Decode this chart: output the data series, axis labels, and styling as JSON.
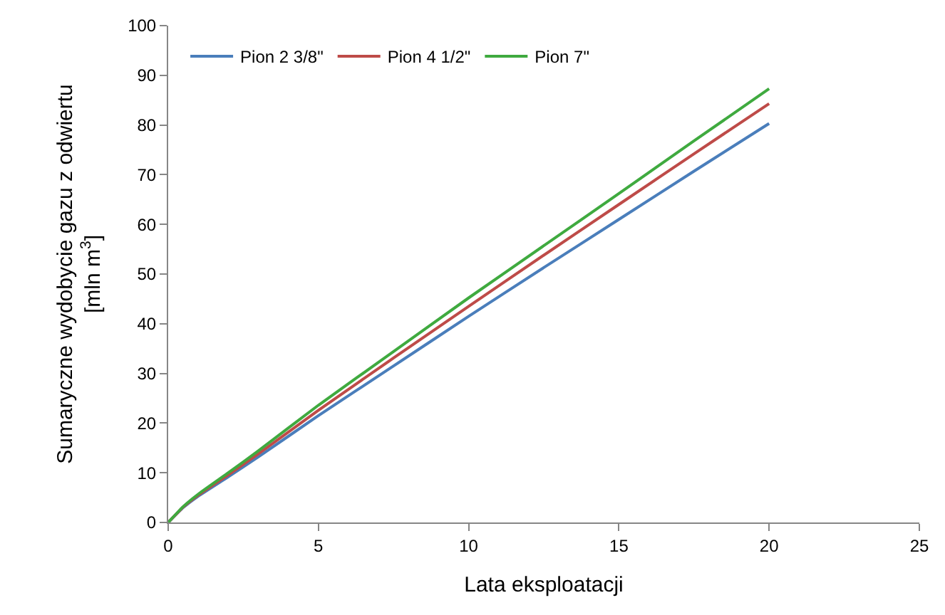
{
  "chart_data": {
    "type": "line",
    "xlabel": "Lata eksploatacji",
    "ylabel": "Sumaryczne wydobycie gazu z odwiertu\n[mln m$^{3}$]",
    "xlim": [
      0,
      25
    ],
    "xticks": [
      0,
      5,
      10,
      15,
      20,
      25
    ],
    "ylim": [
      0,
      100
    ],
    "yticks": [
      0,
      10,
      20,
      30,
      40,
      50,
      60,
      70,
      80,
      90,
      100
    ],
    "grid": false,
    "legend": "top left",
    "marker": "none",
    "line_style": "solid",
    "series": [
      {
        "name": "Pion 2 3/8\"",
        "color": "#4a7ebb",
        "x": [
          0,
          0.5,
          1,
          2,
          3,
          5,
          7.5,
          10,
          12.5,
          15,
          17.5,
          20
        ],
        "values": [
          0,
          3,
          5.3,
          9.2,
          13.2,
          21.5,
          31.5,
          41.5,
          51.3,
          61,
          70.7,
          80.3
        ]
      },
      {
        "name": "Pion 4 1/2\"",
        "color": "#be4b48",
        "x": [
          0,
          0.5,
          1,
          2,
          3,
          5,
          7.5,
          10,
          12.5,
          15,
          17.5,
          20
        ],
        "values": [
          0,
          3.1,
          5.5,
          9.6,
          13.8,
          22.6,
          33.1,
          43.5,
          53.8,
          64,
          74.2,
          84.3
        ]
      },
      {
        "name": "Pion 7\"",
        "color": "#3faa3f",
        "x": [
          0,
          0.5,
          1,
          2,
          3,
          5,
          7.5,
          10,
          12.5,
          15,
          17.5,
          20
        ],
        "values": [
          0,
          3.2,
          5.7,
          10,
          14.4,
          23.6,
          34.4,
          45.2,
          55.7,
          66.2,
          76.8,
          87.3
        ]
      }
    ]
  }
}
